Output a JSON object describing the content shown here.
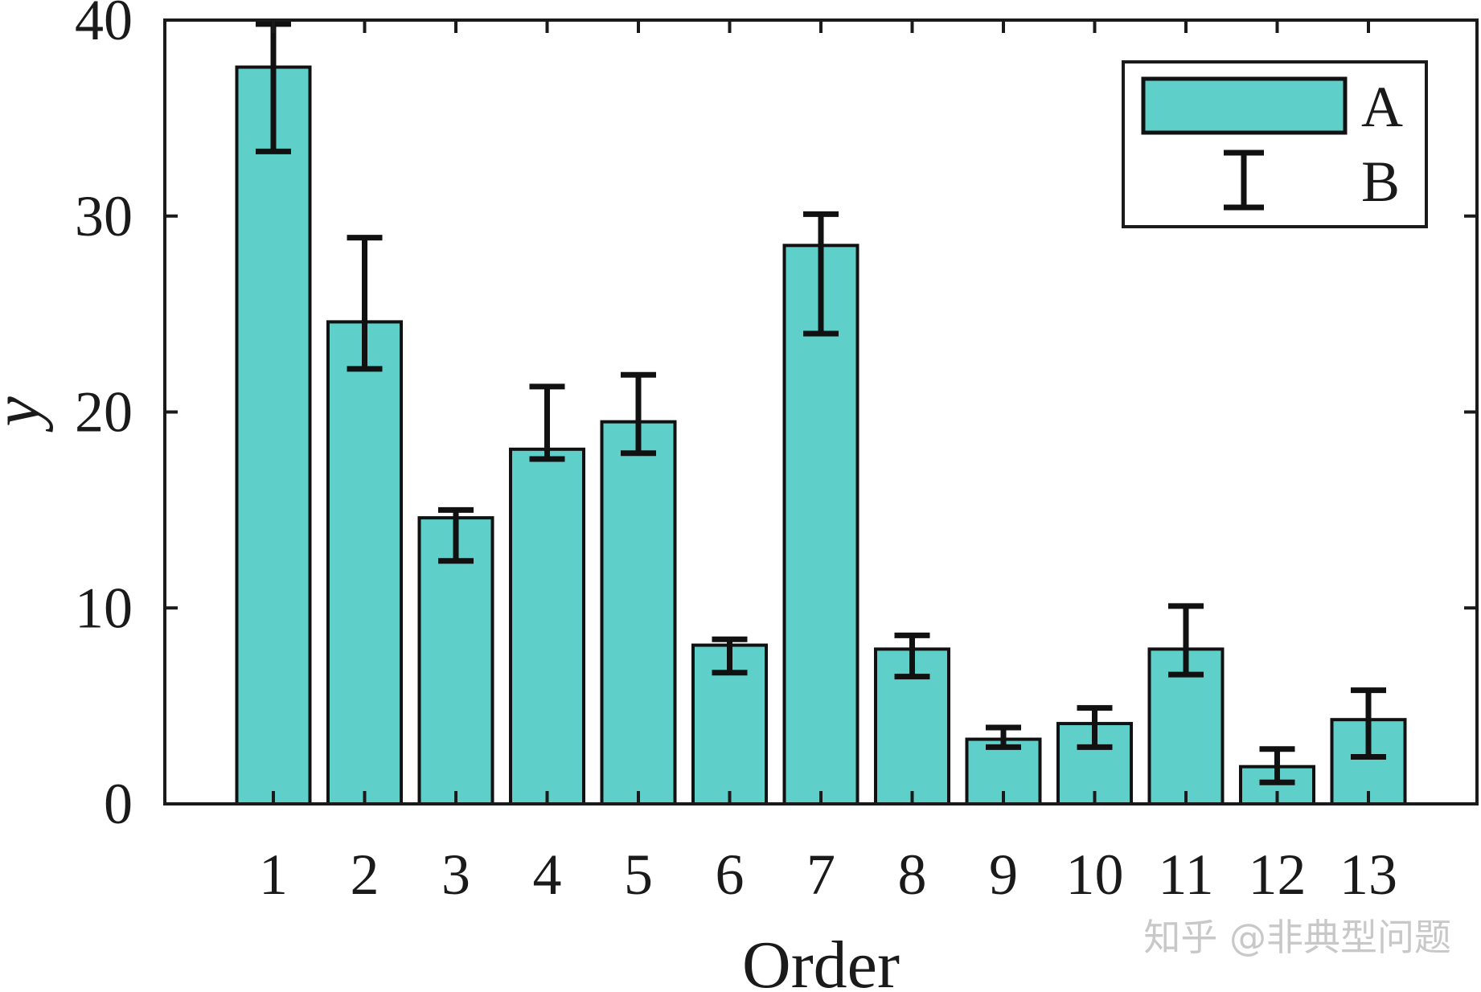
{
  "chart_data": {
    "type": "bar",
    "categories": [
      "1",
      "2",
      "3",
      "4",
      "5",
      "6",
      "7",
      "8",
      "9",
      "10",
      "11",
      "12",
      "13"
    ],
    "series": [
      {
        "name": "A",
        "values": [
          37.6,
          24.6,
          14.6,
          18.1,
          19.5,
          8.1,
          28.5,
          7.9,
          3.3,
          4.1,
          7.9,
          1.9,
          4.3
        ],
        "color": "#5ecfc9"
      }
    ],
    "errors": {
      "name": "B",
      "lower": [
        33.3,
        22.2,
        12.4,
        17.6,
        17.9,
        6.7,
        24.0,
        6.5,
        2.9,
        2.9,
        6.6,
        1.1,
        2.4
      ],
      "upper": [
        39.8,
        28.9,
        15.0,
        21.3,
        21.9,
        8.4,
        30.1,
        8.6,
        3.9,
        4.9,
        10.1,
        2.8,
        5.8
      ]
    },
    "xlabel": "Order",
    "ylabel": "y",
    "ylim": [
      0,
      40
    ],
    "yticks": [
      "0",
      "10",
      "20",
      "30",
      "40"
    ],
    "legend": {
      "position": "top-right",
      "entries": [
        "A",
        "B"
      ]
    },
    "grid": false,
    "title": "",
    "colors": {
      "bar_fill": "#5ecfc9",
      "bar_edge": "#111111",
      "axis": "#1a1a1a",
      "errorbar": "#111111"
    }
  },
  "watermark": "知乎 @非典型问题"
}
